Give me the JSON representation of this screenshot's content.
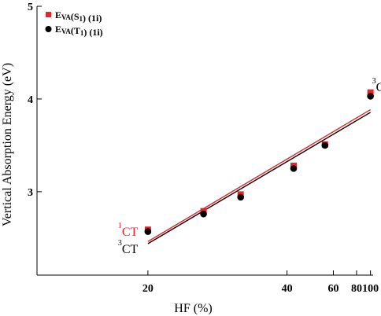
{
  "chart_data": {
    "type": "scatter",
    "xlabel": "HF (%)",
    "ylabel": "Vertical Absorption Energy (eV)",
    "x_scale": "reciprocal",
    "xlim": [
      14.3,
      105
    ],
    "ylim": [
      2.1,
      5
    ],
    "x_ticks": [
      "20",
      "40",
      "60",
      "80",
      "100"
    ],
    "x_tick_values": [
      20,
      40,
      60,
      80,
      100
    ],
    "y_ticks": [
      "5",
      "4",
      "3"
    ],
    "y_tick_values": [
      5,
      4,
      3
    ],
    "legend_position": "top-left",
    "series": [
      {
        "name_main": "E",
        "name_sub": "VA",
        "name_paren": "(S",
        "name_subscript": "1",
        "name_tail": ") (1i)",
        "marker": "square",
        "color": "#e8242c",
        "x": [
          20,
          25,
          30,
          42,
          55,
          100
        ],
        "y": [
          2.59,
          2.79,
          2.97,
          3.28,
          3.51,
          4.07
        ]
      },
      {
        "name_main": "E",
        "name_sub": "VA",
        "name_paren": "(T",
        "name_subscript": "1",
        "name_tail": ") (1i)",
        "marker": "circle",
        "color": "#000000",
        "x": [
          20,
          25,
          30,
          42,
          55,
          100
        ],
        "y": [
          2.57,
          2.76,
          2.94,
          3.25,
          3.5,
          4.03
        ]
      }
    ],
    "annotations": [
      {
        "sup": "1",
        "text": "CT",
        "color": "#e8242c",
        "x": 20,
        "y": 2.56
      },
      {
        "sup": "3",
        "text": "CT",
        "color": "#000000",
        "x": 20,
        "y": 2.37
      },
      {
        "sup": "3",
        "text": "CT",
        "color": "#000000",
        "x": 100,
        "y": 4.12
      }
    ]
  }
}
